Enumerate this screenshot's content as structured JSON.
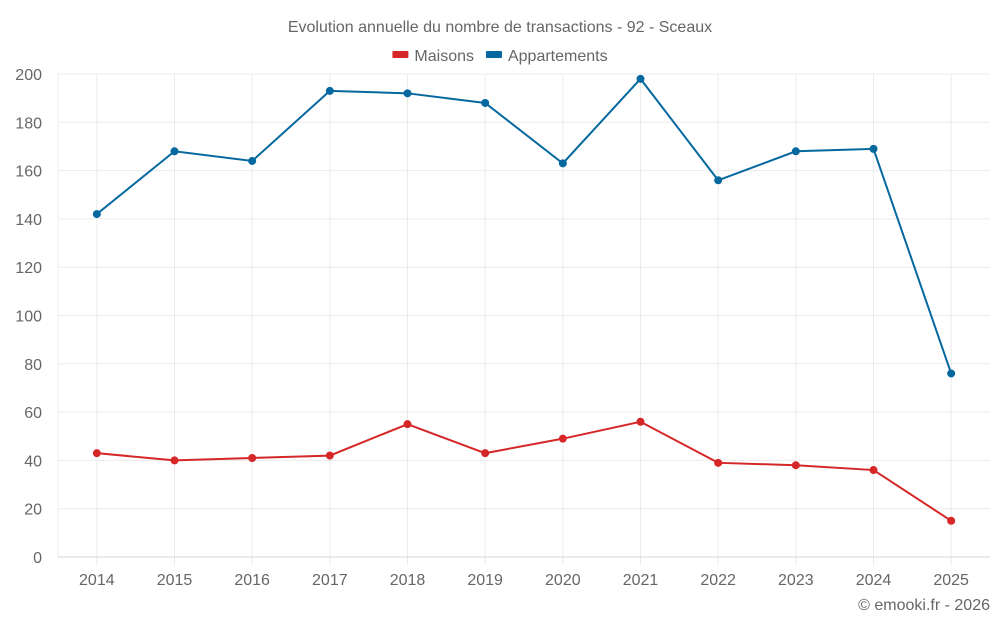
{
  "chart_data": {
    "type": "line",
    "title": "Evolution annuelle du nombre de transactions - 92 - Sceaux",
    "xlabel": "",
    "ylabel": "",
    "categories": [
      "2014",
      "2015",
      "2016",
      "2017",
      "2018",
      "2019",
      "2020",
      "2021",
      "2022",
      "2023",
      "2024",
      "2025"
    ],
    "series": [
      {
        "name": "Maisons",
        "color": "#d62728",
        "values": [
          43,
          40,
          41,
          42,
          55,
          43,
          49,
          56,
          39,
          38,
          36,
          15
        ]
      },
      {
        "name": "Appartements",
        "color": "#05689f",
        "values": [
          142,
          168,
          164,
          193,
          192,
          188,
          163,
          198,
          156,
          168,
          169,
          76
        ]
      }
    ],
    "ylim": [
      0,
      200
    ],
    "yticks": [
      0,
      20,
      40,
      60,
      80,
      100,
      120,
      140,
      160,
      180,
      200
    ],
    "grid": true,
    "legend_position": "top-center",
    "credit": "© emooki.fr - 2026"
  }
}
